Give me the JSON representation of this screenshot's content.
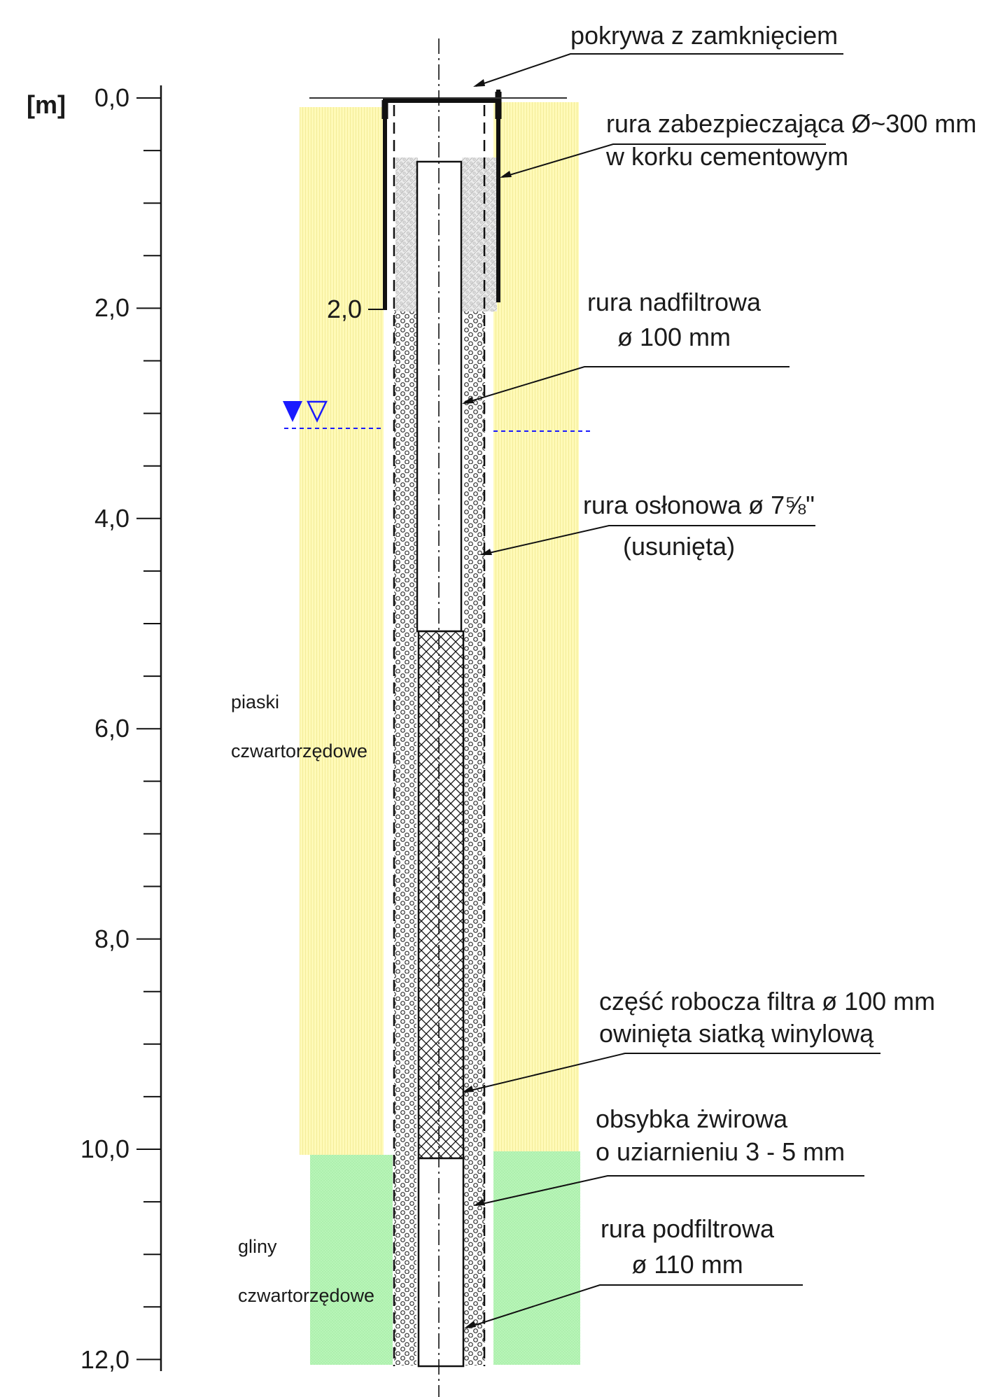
{
  "scale": {
    "unit": "[m]",
    "ticks": [
      "0,0",
      "2,0",
      "4,0",
      "6,0",
      "8,0",
      "10,0",
      "12,0"
    ],
    "casing_depth_label": "2,0"
  },
  "labels": {
    "cover": "pokrywa z zamknięciem",
    "protective_pipe_line1": "rura zabezpieczająca Ø~300 mm",
    "protective_pipe_line2": "w korku cementowym",
    "above_filter_line1": "rura nadfiltrowa",
    "above_filter_line2": "ø 100 mm",
    "casing_line1": "rura osłonowa ø 7⅝\"",
    "casing_line2": "(usunięta)",
    "filter_line1": "część robocza filtra  ø 100 mm",
    "filter_line2": "owinięta siatką winylową",
    "gravel_line1": "obsybka żwirowa",
    "gravel_line2": "o uziarnieniu 3 - 5 mm",
    "below_filter_line1": "rura podfiltrowa",
    "below_filter_line2": "ø 110 mm"
  },
  "strata": {
    "sand_line1": "piaski",
    "sand_line2": "czwartorzędowe",
    "clay_line1": "gliny",
    "clay_line2": "czwartorzędowe"
  },
  "colors": {
    "sand": "#fffab8",
    "clay": "#b6f5b6",
    "water_level": "#1a1aff",
    "lines": "#1a1a1a"
  },
  "icons": {
    "water_table": "water-level-triangles"
  }
}
